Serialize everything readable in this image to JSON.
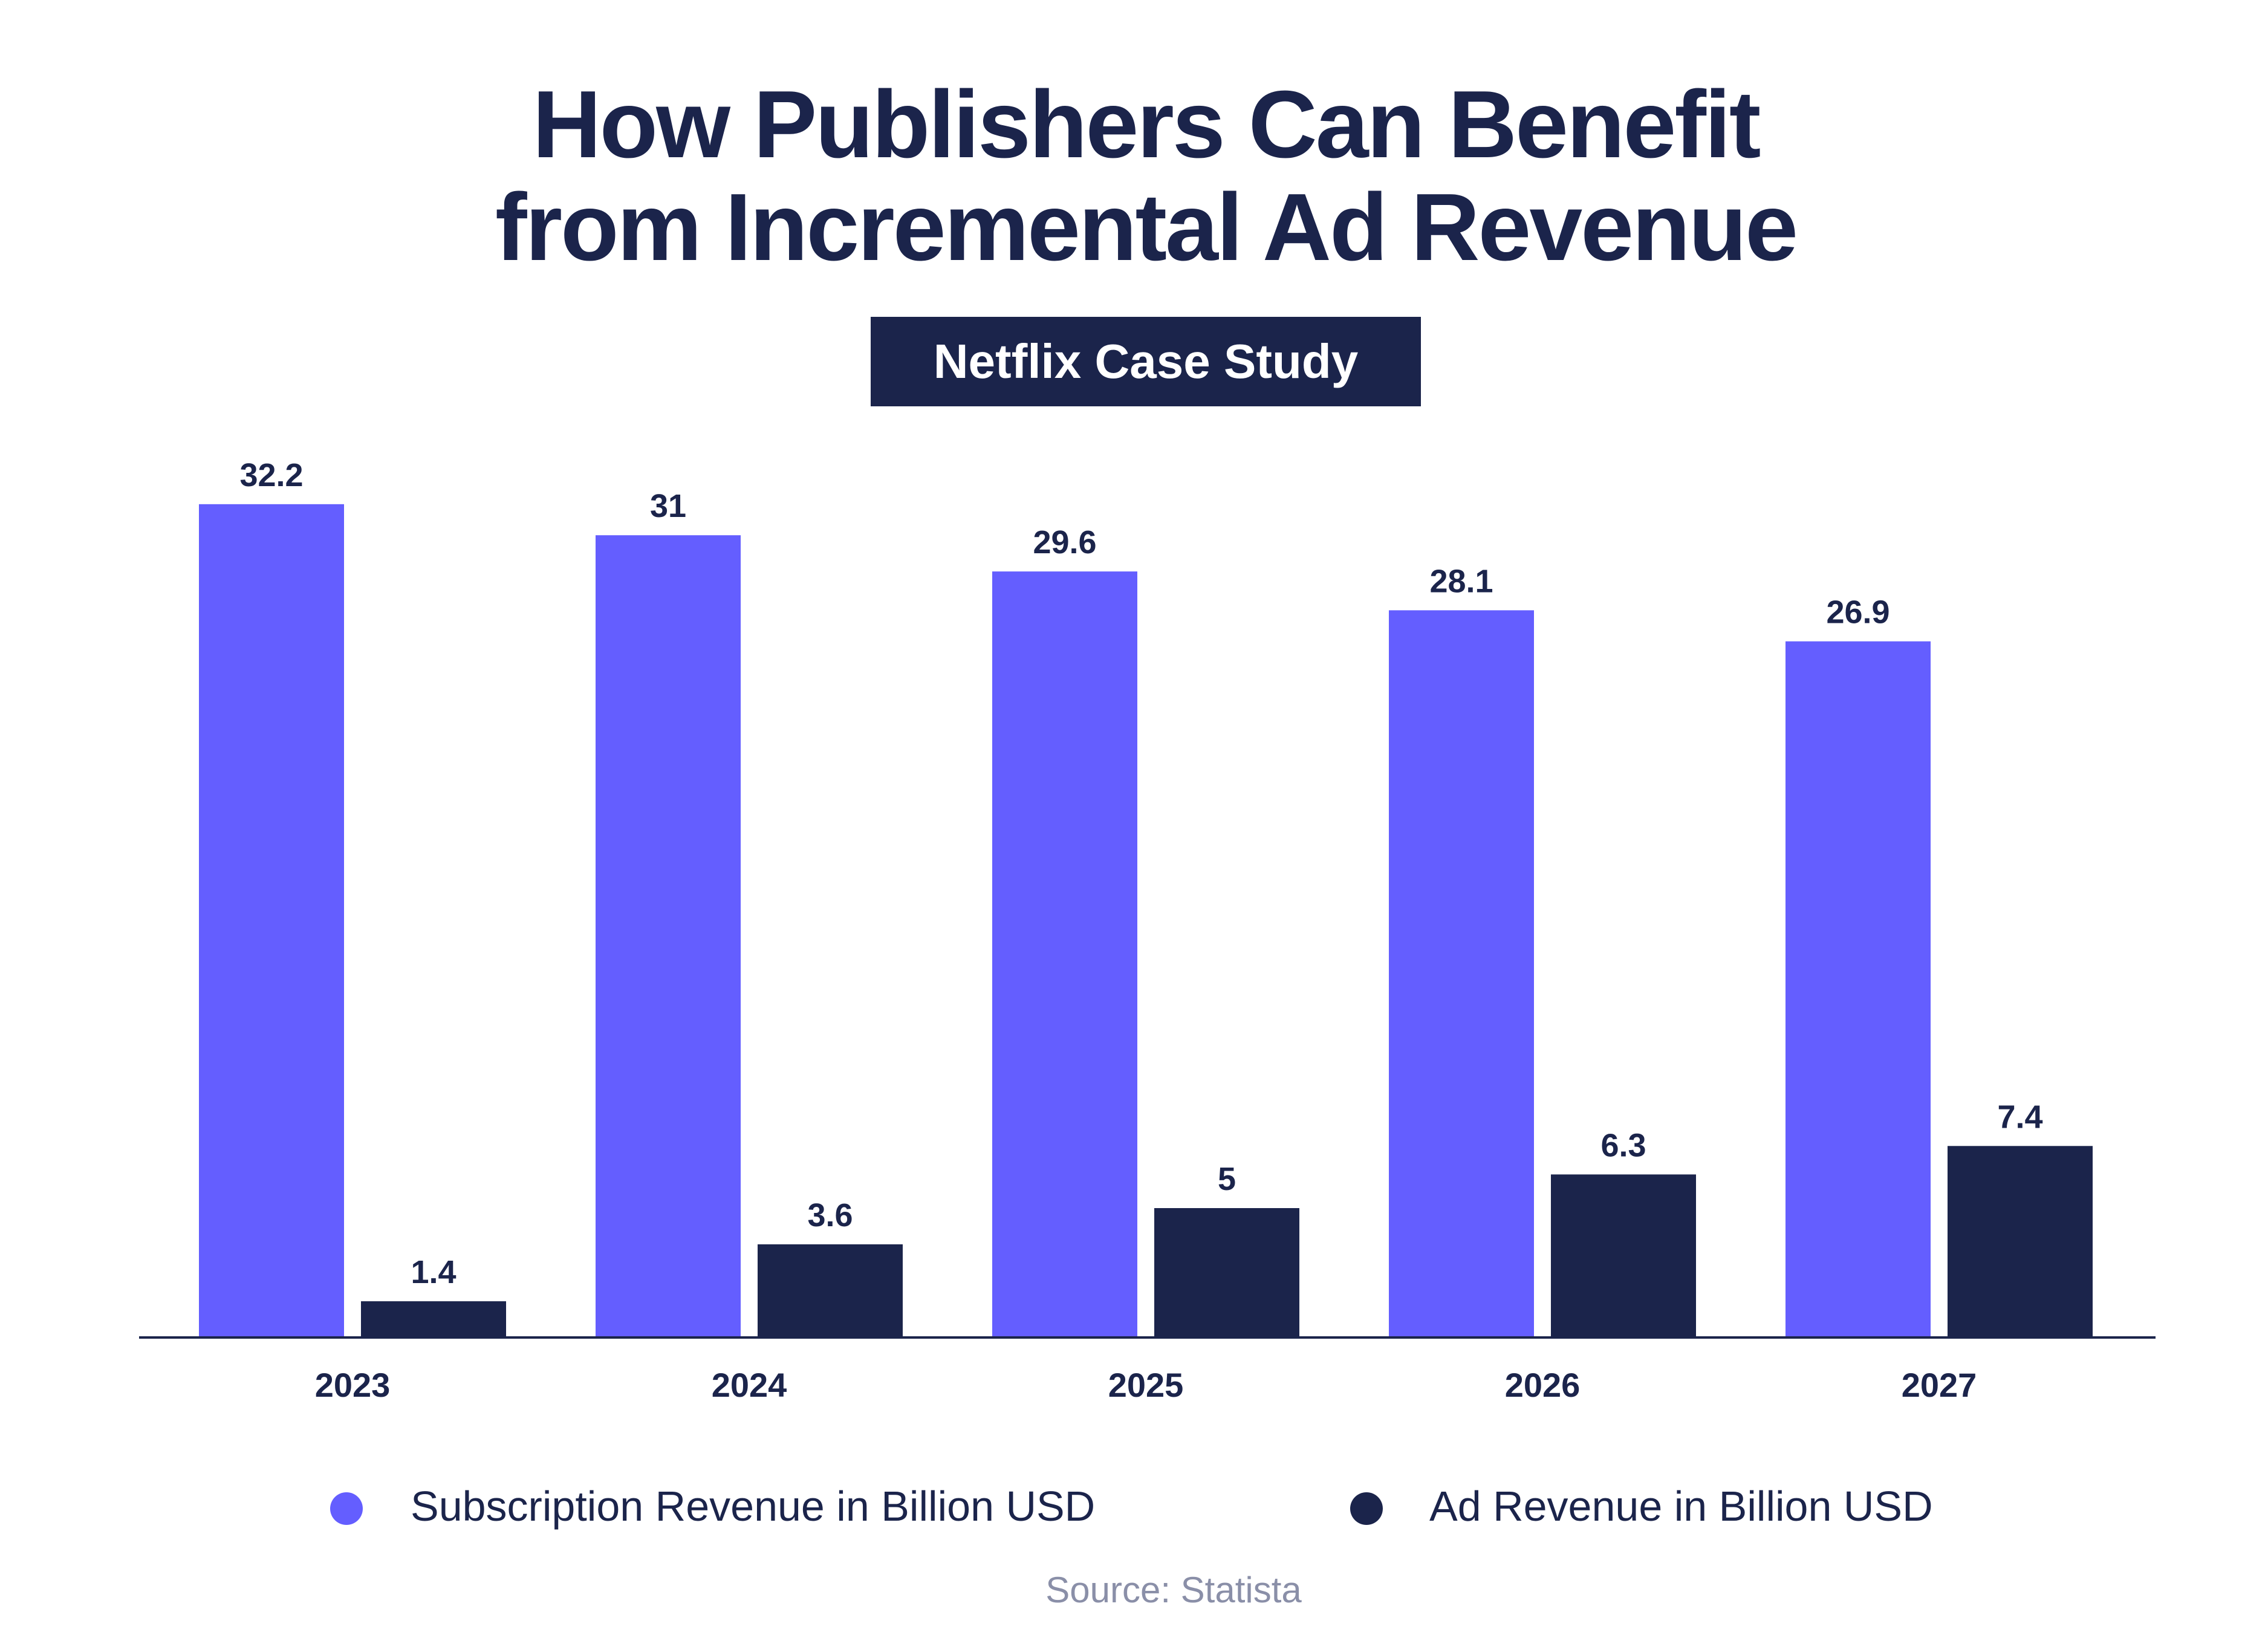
{
  "title_line1": "How Publishers Can Benefit",
  "title_line2": "from Incremental Ad Revenue",
  "badge": "Netflix Case Study",
  "source": "Source: Statista",
  "chart_data": {
    "type": "bar",
    "categories": [
      "2023",
      "2024",
      "2025",
      "2026",
      "2027"
    ],
    "series": [
      {
        "name": "Subscription Revenue in Billion USD",
        "values": [
          32.2,
          31,
          29.6,
          28.1,
          26.9
        ],
        "color": "#645EFF"
      },
      {
        "name": "Ad Revenue in Billion USD",
        "values": [
          1.4,
          3.6,
          5,
          6.3,
          7.4
        ],
        "color": "#1B244B"
      }
    ],
    "data_labels": true,
    "grid": false,
    "y_axis_visible": false,
    "legend_position": "bottom"
  }
}
